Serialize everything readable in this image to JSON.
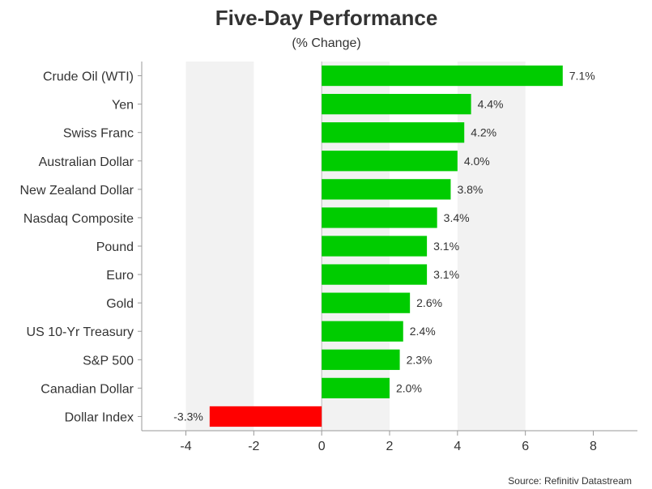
{
  "chart_data": {
    "type": "bar",
    "orientation": "horizontal",
    "title": "Five-Day Performance",
    "subtitle": "(% Change)",
    "source": "Source: Refinitiv Datastream",
    "categories": [
      "Crude Oil (WTI)",
      "Yen",
      "Swiss Franc",
      "Australian Dollar",
      "New Zealand Dollar",
      "Nasdaq Composite",
      "Pound",
      "Euro",
      "Gold",
      "US 10-Yr Treasury",
      "S&P 500",
      "Canadian Dollar",
      "Dollar Index"
    ],
    "values": [
      7.1,
      4.4,
      4.2,
      4.0,
      3.8,
      3.4,
      3.1,
      3.1,
      2.6,
      2.4,
      2.3,
      2.0,
      -3.3
    ],
    "value_labels": [
      "7.1%",
      "4.4%",
      "4.2%",
      "4.0%",
      "3.8%",
      "3.4%",
      "3.1%",
      "3.1%",
      "2.6%",
      "2.4%",
      "2.3%",
      "2.0%",
      "-3.3%"
    ],
    "xlim": [
      -5.3,
      9.3
    ],
    "xticks": [
      -4,
      -2,
      0,
      2,
      4,
      6,
      8
    ],
    "xtick_labels": [
      "-4",
      "-2",
      "0",
      "2",
      "4",
      "6",
      "8"
    ],
    "xlabel": "",
    "ylabel": "",
    "grid": false,
    "alternating_bands": true,
    "colors": {
      "positive": "#00cc00",
      "negative": "#ff0000",
      "band": "#f2f2f2",
      "axis": "#999999",
      "zero_line": "#bbbbbb"
    }
  }
}
